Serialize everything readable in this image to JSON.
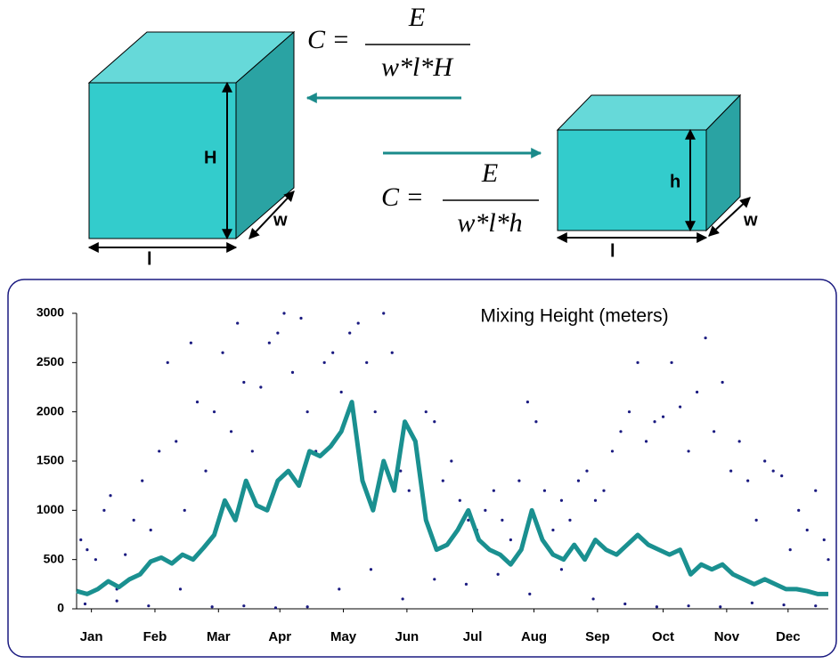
{
  "diagram": {
    "big_box": {
      "height_label": "H",
      "width_label": "w",
      "length_label": "l"
    },
    "small_box": {
      "height_label": "h",
      "width_label": "w",
      "length_label": "l"
    },
    "formula_top": {
      "lhs": "C =",
      "numerator": "E",
      "denominator": "w*l*H"
    },
    "formula_bottom": {
      "lhs": "C =",
      "numerator": "E",
      "denominator": "w*l*h"
    }
  },
  "chart_data": {
    "type": "line",
    "title": "Mixing Height (meters)",
    "xlim": [
      1,
      356
    ],
    "ylim": [
      0,
      3000
    ],
    "yticks": [
      0,
      500,
      1000,
      1500,
      2000,
      2500,
      3000
    ],
    "xticks": [
      {
        "value": 8,
        "label": "Jan"
      },
      {
        "value": 38,
        "label": "Feb"
      },
      {
        "value": 68,
        "label": "Mar"
      },
      {
        "value": 97,
        "label": "Apr"
      },
      {
        "value": 127,
        "label": "May"
      },
      {
        "value": 157,
        "label": "Jun"
      },
      {
        "value": 188,
        "label": "Jul"
      },
      {
        "value": 217,
        "label": "Aug"
      },
      {
        "value": 247,
        "label": "Sep"
      },
      {
        "value": 278,
        "label": "Oct"
      },
      {
        "value": 308,
        "label": "Nov"
      },
      {
        "value": 337,
        "label": "Dec"
      }
    ],
    "series": [
      {
        "type": "scatter",
        "color": "#1a1a80",
        "x": [
          3,
          6,
          10,
          14,
          17,
          20,
          24,
          28,
          32,
          36,
          40,
          44,
          48,
          52,
          55,
          58,
          62,
          66,
          70,
          74,
          77,
          80,
          84,
          88,
          92,
          96,
          99,
          103,
          107,
          110,
          114,
          118,
          122,
          126,
          130,
          134,
          138,
          142,
          146,
          150,
          154,
          158,
          162,
          166,
          170,
          174,
          178,
          182,
          186,
          190,
          194,
          198,
          202,
          206,
          210,
          214,
          218,
          222,
          226,
          230,
          234,
          238,
          242,
          246,
          250,
          254,
          258,
          262,
          266,
          270,
          274,
          278,
          282,
          286,
          290,
          294,
          298,
          302,
          306,
          310,
          314,
          318,
          322,
          326,
          330,
          334,
          338,
          342,
          346,
          350,
          354,
          356,
          5,
          20,
          35,
          50,
          65,
          80,
          95,
          110,
          125,
          140,
          155,
          170,
          185,
          200,
          215,
          230,
          245,
          260,
          275,
          290,
          305,
          320,
          335,
          350
        ],
        "values": [
          700,
          600,
          500,
          1000,
          1150,
          200,
          550,
          900,
          1300,
          800,
          1600,
          2500,
          1700,
          1000,
          2700,
          2100,
          1400,
          2000,
          2600,
          1800,
          2900,
          2300,
          1600,
          2250,
          2700,
          2800,
          3000,
          2400,
          2950,
          2000,
          1600,
          2500,
          2600,
          2200,
          2800,
          2900,
          2500,
          2000,
          3000,
          2600,
          1400,
          1200,
          1500,
          2000,
          1900,
          1300,
          1500,
          1100,
          900,
          800,
          1000,
          1200,
          900,
          700,
          1300,
          2100,
          1900,
          1200,
          800,
          1100,
          900,
          1300,
          1400,
          1100,
          1200,
          1600,
          1800,
          2000,
          2500,
          1700,
          1900,
          1950,
          2500,
          2050,
          1600,
          2200,
          2750,
          1800,
          2300,
          1400,
          1700,
          1300,
          900,
          1500,
          1400,
          1350,
          600,
          1000,
          800,
          1200,
          700,
          500,
          50,
          80,
          30,
          200,
          20,
          30,
          10,
          20,
          200,
          400,
          100,
          300,
          250,
          350,
          150,
          400,
          100,
          50,
          20,
          30,
          20,
          60,
          40,
          30
        ]
      },
      {
        "type": "line",
        "color": "#1a9090",
        "x": [
          1,
          6,
          11,
          16,
          21,
          26,
          31,
          36,
          41,
          46,
          51,
          56,
          61,
          66,
          71,
          76,
          81,
          86,
          91,
          96,
          101,
          106,
          111,
          116,
          121,
          126,
          131,
          136,
          141,
          146,
          151,
          156,
          161,
          166,
          171,
          176,
          181,
          186,
          191,
          196,
          201,
          206,
          211,
          216,
          221,
          226,
          231,
          236,
          241,
          246,
          251,
          256,
          261,
          266,
          271,
          276,
          281,
          286,
          291,
          296,
          301,
          306,
          311,
          316,
          321,
          326,
          331,
          336,
          341,
          346,
          351,
          356
        ],
        "values": [
          180,
          150,
          200,
          280,
          220,
          300,
          350,
          480,
          520,
          460,
          550,
          500,
          620,
          750,
          1100,
          900,
          1300,
          1050,
          1000,
          1300,
          1400,
          1250,
          1600,
          1550,
          1650,
          1800,
          2100,
          1300,
          1000,
          1500,
          1200,
          1900,
          1700,
          900,
          600,
          650,
          800,
          1000,
          700,
          600,
          550,
          450,
          600,
          1000,
          700,
          550,
          500,
          650,
          500,
          700,
          600,
          550,
          650,
          750,
          650,
          600,
          550,
          600,
          350,
          450,
          400,
          450,
          350,
          300,
          250,
          300,
          250,
          200,
          200,
          180,
          150,
          150
        ]
      }
    ]
  }
}
